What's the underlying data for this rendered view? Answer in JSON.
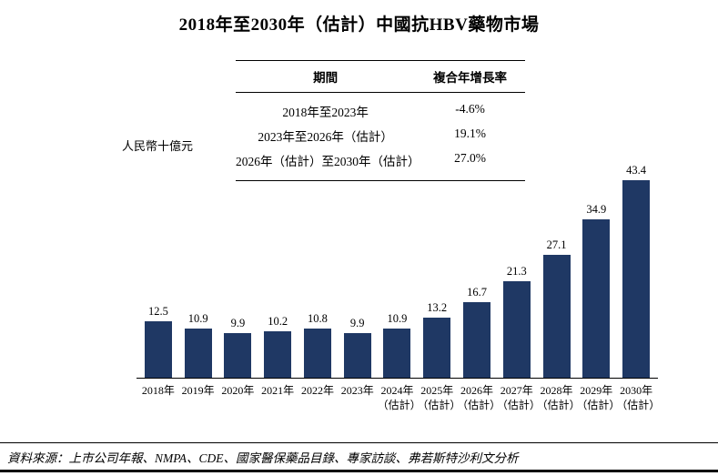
{
  "page": {
    "title": "2018年至2030年（估計）中國抗HBV藥物市場",
    "y_axis_label": "人民幣十億元",
    "source_text": "資料來源：上市公司年報、NMPA、CDE、國家醫保藥品目錄、專家訪談、弗若斯特沙利文分析"
  },
  "colors": {
    "bar": "#1F3864",
    "text": "#000000",
    "rule": "#000000"
  },
  "chart_data": {
    "type": "bar",
    "title": "2018年至2030年（估計）中國抗HBV藥物市場",
    "ylabel": "人民幣十億元",
    "unit": "人民幣十億元",
    "categories": [
      "2018年",
      "2019年",
      "2020年",
      "2021年",
      "2022年",
      "2023年",
      "2024年\n（估計）",
      "2025年\n（估計）",
      "2026年\n（估計）",
      "2027年\n（估計）",
      "2028年\n（估計）",
      "2029年\n（估計）",
      "2030年\n（估計）"
    ],
    "values": [
      12.5,
      10.9,
      9.9,
      10.2,
      10.8,
      9.9,
      10.9,
      13.2,
      16.7,
      21.3,
      27.1,
      34.9,
      43.4
    ],
    "ylim": [
      0,
      45
    ],
    "grid": false,
    "legend": "none",
    "bar_color": "#1F3864",
    "cagr_table": {
      "headers": {
        "period": "期間",
        "cagr": "複合年增長率"
      },
      "rows": [
        {
          "period": "2018年至2023年",
          "cagr": "-4.6%"
        },
        {
          "period": "2023年至2026年（估計）",
          "cagr": "19.1%"
        },
        {
          "period": "2026年（估計）至2030年（估計）",
          "cagr": "27.0%"
        }
      ]
    }
  }
}
